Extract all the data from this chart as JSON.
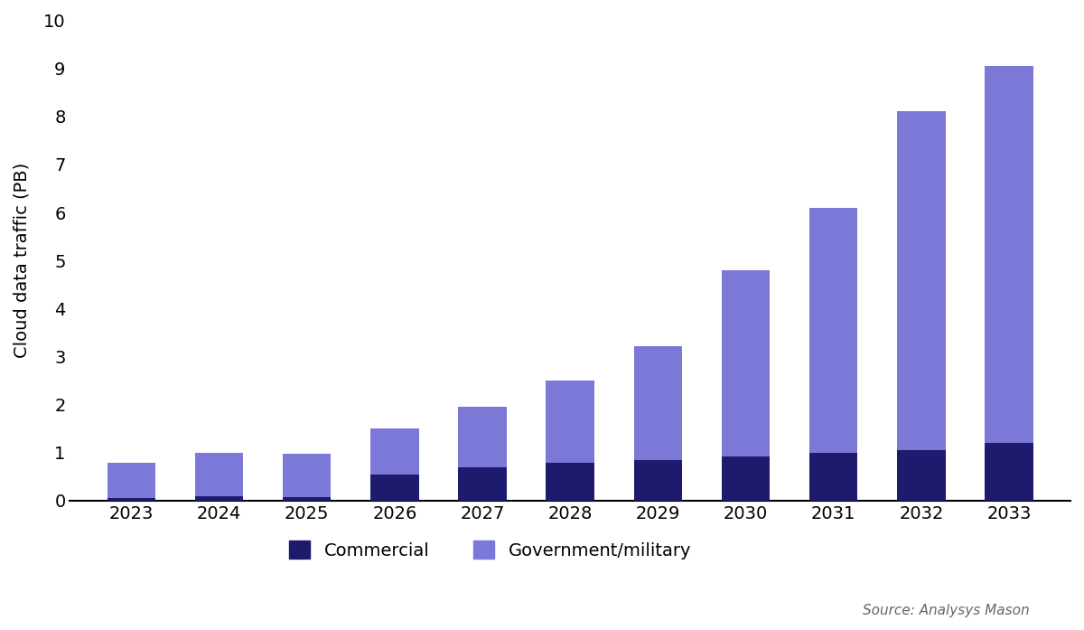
{
  "years": [
    "2023",
    "2024",
    "2025",
    "2026",
    "2027",
    "2028",
    "2029",
    "2030",
    "2031",
    "2032",
    "2033"
  ],
  "commercial": [
    0.05,
    0.1,
    0.07,
    0.55,
    0.7,
    0.78,
    0.85,
    0.92,
    1.0,
    1.05,
    1.2
  ],
  "government_military": [
    0.73,
    0.9,
    0.9,
    0.95,
    1.25,
    1.72,
    2.37,
    3.88,
    5.1,
    7.05,
    7.85
  ],
  "commercial_color": "#1e1b6e",
  "government_color": "#7b78d8",
  "background_color": "#ffffff",
  "ylabel": "Cloud data traffic (PB)",
  "ylim": [
    0,
    10
  ],
  "yticks": [
    0,
    1,
    2,
    3,
    4,
    5,
    6,
    7,
    8,
    9,
    10
  ],
  "legend_commercial": "Commercial",
  "legend_government": "Government/military",
  "source_text": "Source: Analysys Mason",
  "bar_width": 0.55
}
